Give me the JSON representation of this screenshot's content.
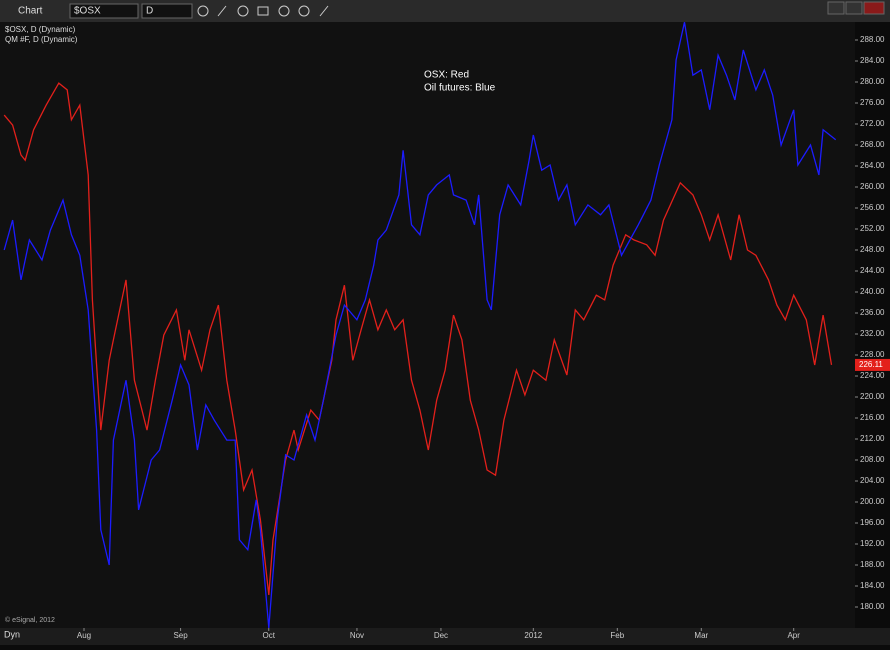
{
  "toolbar": {
    "title": "Chart",
    "symbol": "$OSX",
    "interval": "D",
    "mode": "Dyn"
  },
  "chart_data": {
    "type": "line",
    "annotations": [
      "OSX:  Red",
      "Oil futures:  Blue"
    ],
    "copyright": "© eSignal, 2012",
    "xlim": [
      0,
      203.6
    ],
    "ylim": [
      176,
      291.43
    ],
    "xticks": [
      {
        "value": 20,
        "label": "Aug"
      },
      {
        "value": 43,
        "label": "Sep"
      },
      {
        "value": 64,
        "label": "Oct"
      },
      {
        "value": 85,
        "label": "Nov"
      },
      {
        "value": 105,
        "label": "Dec"
      },
      {
        "value": 127,
        "label": "2012"
      },
      {
        "value": 147,
        "label": "Feb"
      },
      {
        "value": 167,
        "label": "Mar"
      },
      {
        "value": 189,
        "label": "Apr"
      }
    ],
    "yticks": [
      {
        "value": 180,
        "label": "180.00"
      },
      {
        "value": 184,
        "label": "184.00"
      },
      {
        "value": 188,
        "label": "188.00"
      },
      {
        "value": 192,
        "label": "192.00"
      },
      {
        "value": 196,
        "label": "196.00"
      },
      {
        "value": 200,
        "label": "200.00"
      },
      {
        "value": 204,
        "label": "204.00"
      },
      {
        "value": 208,
        "label": "208.00"
      },
      {
        "value": 212,
        "label": "212.00"
      },
      {
        "value": 216,
        "label": "216.00"
      },
      {
        "value": 220,
        "label": "220.00"
      },
      {
        "value": 224,
        "label": "224.00"
      },
      {
        "value": 228,
        "label": "228.00"
      },
      {
        "value": 232,
        "label": "232.00"
      },
      {
        "value": 236,
        "label": "236.00"
      },
      {
        "value": 240,
        "label": "240.00"
      },
      {
        "value": 244,
        "label": "244.00"
      },
      {
        "value": 248,
        "label": "248.00"
      },
      {
        "value": 252,
        "label": "252.00"
      },
      {
        "value": 256,
        "label": "256.00"
      },
      {
        "value": 260,
        "label": "260.00"
      },
      {
        "value": 264,
        "label": "264.00"
      },
      {
        "value": 268,
        "label": "268.00"
      },
      {
        "value": 272,
        "label": "272.00"
      },
      {
        "value": 276,
        "label": "276.00"
      },
      {
        "value": 280,
        "label": "280.00"
      },
      {
        "value": 284,
        "label": "284.00"
      },
      {
        "value": 288,
        "label": "288.00"
      }
    ],
    "series": [
      {
        "name": "$OSX, D (Dynamic)",
        "color": "#e3201b",
        "x": [
          1,
          3,
          5,
          6,
          8,
          11,
          14,
          16,
          17,
          19,
          21,
          22,
          24,
          26,
          27,
          30,
          32,
          35,
          37,
          39,
          42,
          44,
          45,
          48,
          50,
          52,
          54,
          56,
          58,
          60,
          62,
          64,
          65,
          68,
          70,
          71,
          74,
          76,
          79,
          80,
          82,
          84,
          86,
          88,
          90,
          92,
          94,
          96,
          98,
          100,
          102,
          104,
          106,
          108,
          110,
          112,
          114,
          116,
          118,
          120,
          123,
          125,
          127,
          130,
          132,
          135,
          137,
          139,
          142,
          144,
          146,
          149,
          151,
          154,
          156,
          158,
          162,
          165,
          167,
          169,
          171,
          174,
          176,
          178,
          180,
          183,
          185,
          187,
          189,
          192,
          194,
          196,
          198
        ],
        "values": [
          273.7,
          271.8,
          266.1,
          265.1,
          270.9,
          275.6,
          279.8,
          278.5,
          272.8,
          275.6,
          262.3,
          238.5,
          213.7,
          227.0,
          230.9,
          242.3,
          223.2,
          213.7,
          223.2,
          231.8,
          236.6,
          227.0,
          232.8,
          225.1,
          232.8,
          237.5,
          223.2,
          213.7,
          202.3,
          206.1,
          196.6,
          182.3,
          192.8,
          208.0,
          213.7,
          209.9,
          217.5,
          215.6,
          227.0,
          234.7,
          241.3,
          227.0,
          232.8,
          238.5,
          232.8,
          236.6,
          232.8,
          234.7,
          223.2,
          217.5,
          209.9,
          219.4,
          225.1,
          235.6,
          230.9,
          219.4,
          213.7,
          206.1,
          205.1,
          215.6,
          225.1,
          220.4,
          225.1,
          223.2,
          230.9,
          224.2,
          236.6,
          234.7,
          239.4,
          238.5,
          245.1,
          250.9,
          249.9,
          249.0,
          247.0,
          253.7,
          260.8,
          258.5,
          254.7,
          249.9,
          254.7,
          246.1,
          254.7,
          248.0,
          247.0,
          242.3,
          237.5,
          234.7,
          239.4,
          234.7,
          226.1,
          235.6,
          226.11
        ]
      },
      {
        "name": "QM #F, D (Dynamic)",
        "color": "#1c1cff",
        "x": [
          1,
          3,
          5,
          7,
          10,
          12,
          15,
          17,
          19,
          21,
          23,
          24,
          26,
          27,
          30,
          32,
          33,
          36,
          38,
          41,
          43,
          45,
          47,
          49,
          51,
          54,
          56,
          57,
          59,
          61,
          62,
          64,
          66,
          68,
          70,
          73,
          75,
          77,
          80,
          82,
          85,
          87,
          89,
          90,
          92,
          95,
          96,
          98,
          100,
          102,
          104,
          107,
          108,
          111,
          113,
          114,
          116,
          117,
          119,
          121,
          124,
          126,
          127,
          129,
          131,
          133,
          135,
          137,
          140,
          143,
          145,
          148,
          150,
          152,
          155,
          157,
          160,
          161,
          163,
          165,
          167,
          169,
          171,
          173,
          175,
          177,
          180,
          182,
          184,
          186,
          189,
          190,
          193,
          195,
          196,
          199
        ],
        "values": [
          248.0,
          253.7,
          242.3,
          249.9,
          246.1,
          251.8,
          257.5,
          250.9,
          247.0,
          236.6,
          213.7,
          194.7,
          188.0,
          211.8,
          223.2,
          211.8,
          198.5,
          208.0,
          209.9,
          219.4,
          226.1,
          222.3,
          209.9,
          218.5,
          215.6,
          211.8,
          211.8,
          192.8,
          190.9,
          200.4,
          194.7,
          176.0,
          196.6,
          209.0,
          208.0,
          216.6,
          211.8,
          219.4,
          231.8,
          237.5,
          234.7,
          238.5,
          245.1,
          249.9,
          251.8,
          258.5,
          267.0,
          252.8,
          250.9,
          258.5,
          260.4,
          262.3,
          258.5,
          257.5,
          252.8,
          258.5,
          238.5,
          236.6,
          254.7,
          260.4,
          256.6,
          265.1,
          269.9,
          263.2,
          264.2,
          257.5,
          260.4,
          252.8,
          256.6,
          254.7,
          256.6,
          247.0,
          249.9,
          252.8,
          257.5,
          264.2,
          272.8,
          284.2,
          291.4,
          281.3,
          282.3,
          274.7,
          285.1,
          281.3,
          276.6,
          286.1,
          278.5,
          282.3,
          277.5,
          268.0,
          274.7,
          264.2,
          268.0,
          262.3,
          270.9,
          269.0
        ]
      }
    ]
  }
}
